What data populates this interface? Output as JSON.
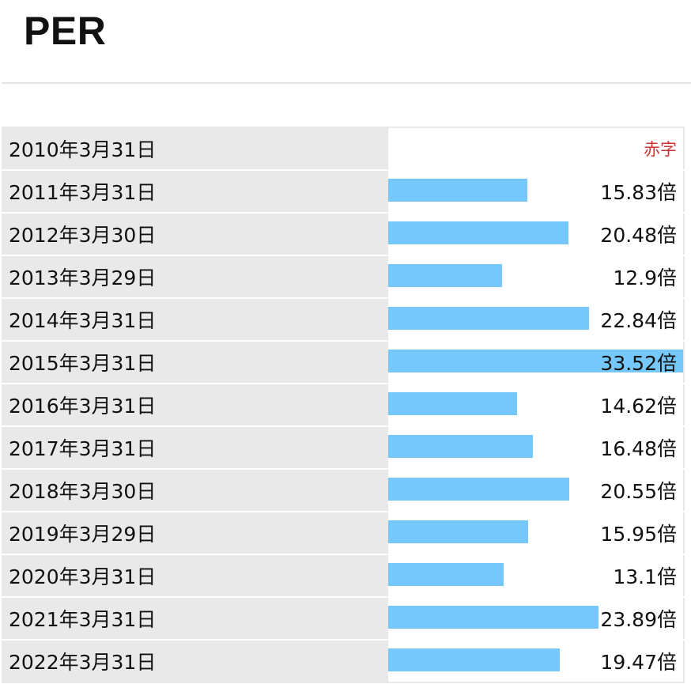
{
  "header": {
    "title": "PER"
  },
  "colors": {
    "bar": "#76c7fb",
    "deficit_text": "#cc3333",
    "date_cell_bg": "#e9e9e9"
  },
  "chart_data": {
    "type": "bar",
    "orientation": "horizontal",
    "title": "PER",
    "unit": "倍",
    "xlim": [
      0,
      33.52
    ],
    "categories": [
      "2010年3月31日",
      "2011年3月31日",
      "2012年3月30日",
      "2013年3月29日",
      "2014年3月31日",
      "2015年3月31日",
      "2016年3月31日",
      "2017年3月31日",
      "2018年3月30日",
      "2019年3月29日",
      "2020年3月31日",
      "2021年3月31日",
      "2022年3月31日"
    ],
    "values": [
      null,
      15.83,
      20.48,
      12.9,
      22.84,
      33.52,
      14.62,
      16.48,
      20.55,
      15.95,
      13.1,
      23.89,
      19.47
    ],
    "labels": [
      "赤字",
      "15.83倍",
      "20.48倍",
      "12.9倍",
      "22.84倍",
      "33.52倍",
      "14.62倍",
      "16.48倍",
      "20.55倍",
      "15.95倍",
      "13.1倍",
      "23.89倍",
      "19.47倍"
    ]
  }
}
